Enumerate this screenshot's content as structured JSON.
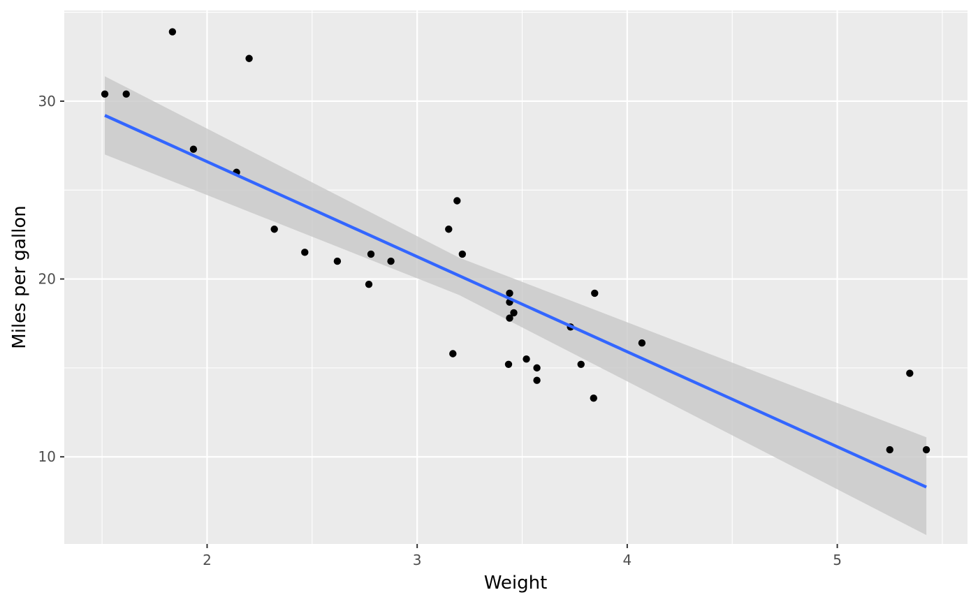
{
  "chart_data": {
    "type": "scatter",
    "title": "",
    "xlabel": "Weight",
    "ylabel": "Miles per gallon",
    "xlim": [
      1.32,
      5.62
    ],
    "ylim": [
      5.1,
      35.1
    ],
    "x_ticks": [
      2,
      3,
      4,
      5
    ],
    "y_ticks": [
      10,
      20,
      30
    ],
    "grid": true,
    "legend": "none",
    "colors": {
      "panel": "#EBEBEB",
      "grid": "#FFFFFF",
      "points": "#000000",
      "fit_line": "#3366FF",
      "ribbon": "#C8C8C8",
      "tick_text": "#4D4D4D"
    },
    "points": [
      {
        "x": 2.62,
        "y": 21.0
      },
      {
        "x": 2.875,
        "y": 21.0
      },
      {
        "x": 2.32,
        "y": 22.8
      },
      {
        "x": 3.215,
        "y": 21.4
      },
      {
        "x": 3.44,
        "y": 18.7
      },
      {
        "x": 3.46,
        "y": 18.1
      },
      {
        "x": 3.57,
        "y": 14.3
      },
      {
        "x": 3.19,
        "y": 24.4
      },
      {
        "x": 3.15,
        "y": 22.8
      },
      {
        "x": 3.44,
        "y": 19.2
      },
      {
        "x": 3.44,
        "y": 17.8
      },
      {
        "x": 4.07,
        "y": 16.4
      },
      {
        "x": 3.73,
        "y": 17.3
      },
      {
        "x": 3.78,
        "y": 15.2
      },
      {
        "x": 5.25,
        "y": 10.4
      },
      {
        "x": 5.424,
        "y": 10.4
      },
      {
        "x": 5.345,
        "y": 14.7
      },
      {
        "x": 2.2,
        "y": 32.4
      },
      {
        "x": 1.615,
        "y": 30.4
      },
      {
        "x": 1.835,
        "y": 33.9
      },
      {
        "x": 2.465,
        "y": 21.5
      },
      {
        "x": 3.52,
        "y": 15.5
      },
      {
        "x": 3.435,
        "y": 15.2
      },
      {
        "x": 3.84,
        "y": 13.3
      },
      {
        "x": 3.845,
        "y": 19.2
      },
      {
        "x": 1.935,
        "y": 27.3
      },
      {
        "x": 2.14,
        "y": 26.0
      },
      {
        "x": 1.513,
        "y": 30.4
      },
      {
        "x": 3.17,
        "y": 15.8
      },
      {
        "x": 2.77,
        "y": 19.7
      },
      {
        "x": 3.57,
        "y": 15.0
      },
      {
        "x": 2.78,
        "y": 21.4
      }
    ],
    "fit": {
      "method": "lm",
      "intercept": 37.285,
      "slope": -5.344,
      "x_range": [
        1.513,
        5.424
      ],
      "ribbon": [
        {
          "x": 1.513,
          "lower": 27.0,
          "upper": 31.4
        },
        {
          "x": 3.2,
          "lower": 19.1,
          "upper": 21.2
        },
        {
          "x": 5.424,
          "lower": 5.6,
          "upper": 11.1
        }
      ]
    }
  }
}
